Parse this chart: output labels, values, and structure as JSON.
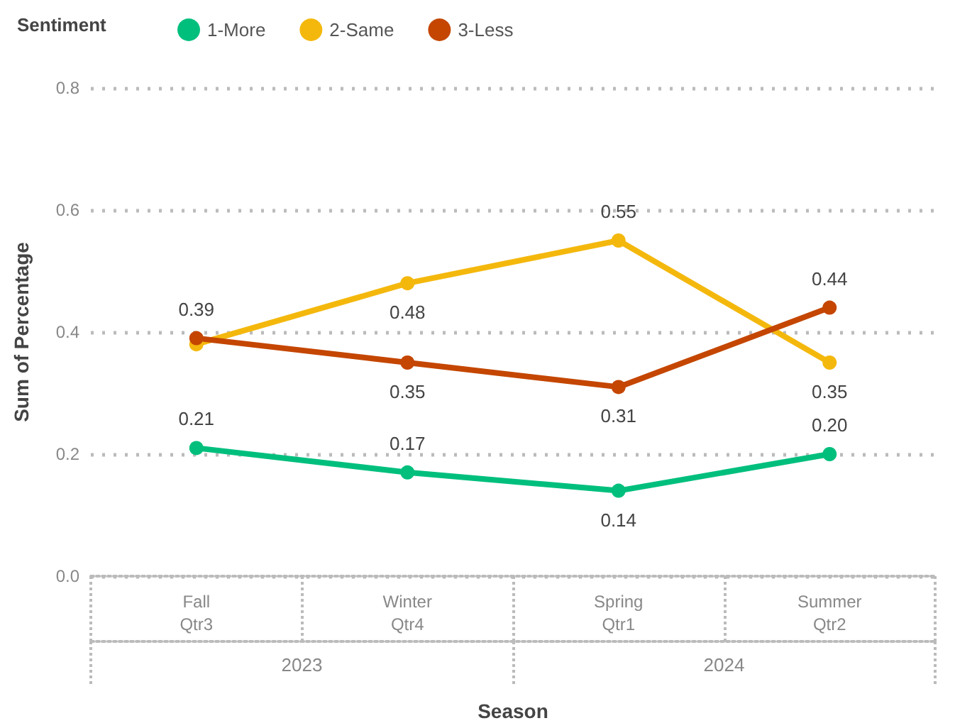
{
  "chart_data": {
    "type": "line",
    "xlabel": "Season",
    "ylabel": "Sum of Percentage",
    "legend_title": "Sentiment",
    "legend": "top left",
    "grid": "y",
    "marker": "circle",
    "line_style": "solid",
    "categories": [
      "Fall\nQtr3",
      "Winter\nQtr4",
      "Spring\nQtr1",
      "Summer\nQtr2"
    ],
    "annotations": [
      "2023",
      "2024"
    ],
    "ylim": [
      0,
      0.8
    ],
    "yticks": [
      {
        "value": 0,
        "label": "0.0"
      },
      {
        "value": 0.2,
        "label": "0.2"
      },
      {
        "value": 0.4,
        "label": "0.4"
      },
      {
        "value": 0.6,
        "label": "0.6"
      },
      {
        "value": 0.8,
        "label": "0.8"
      }
    ],
    "series": [
      {
        "name": "1-More",
        "color": "#00bf7d",
        "values": [
          0.21,
          0.17,
          0.14,
          0.2
        ],
        "value_labels": [
          "0.21",
          "0.17",
          "0.14",
          "0.20"
        ]
      },
      {
        "name": "2-Same",
        "color": "#f4b80d",
        "values": [
          0.38,
          0.48,
          0.55,
          0.35
        ],
        "value_labels": [
          null,
          "0.48",
          "0.55",
          "0.35"
        ]
      },
      {
        "name": "3-Less",
        "color": "#c44601",
        "values": [
          0.39,
          0.35,
          0.31,
          0.44
        ],
        "value_labels": [
          "0.39",
          "0.35",
          "0.31",
          "0.44"
        ]
      }
    ]
  }
}
